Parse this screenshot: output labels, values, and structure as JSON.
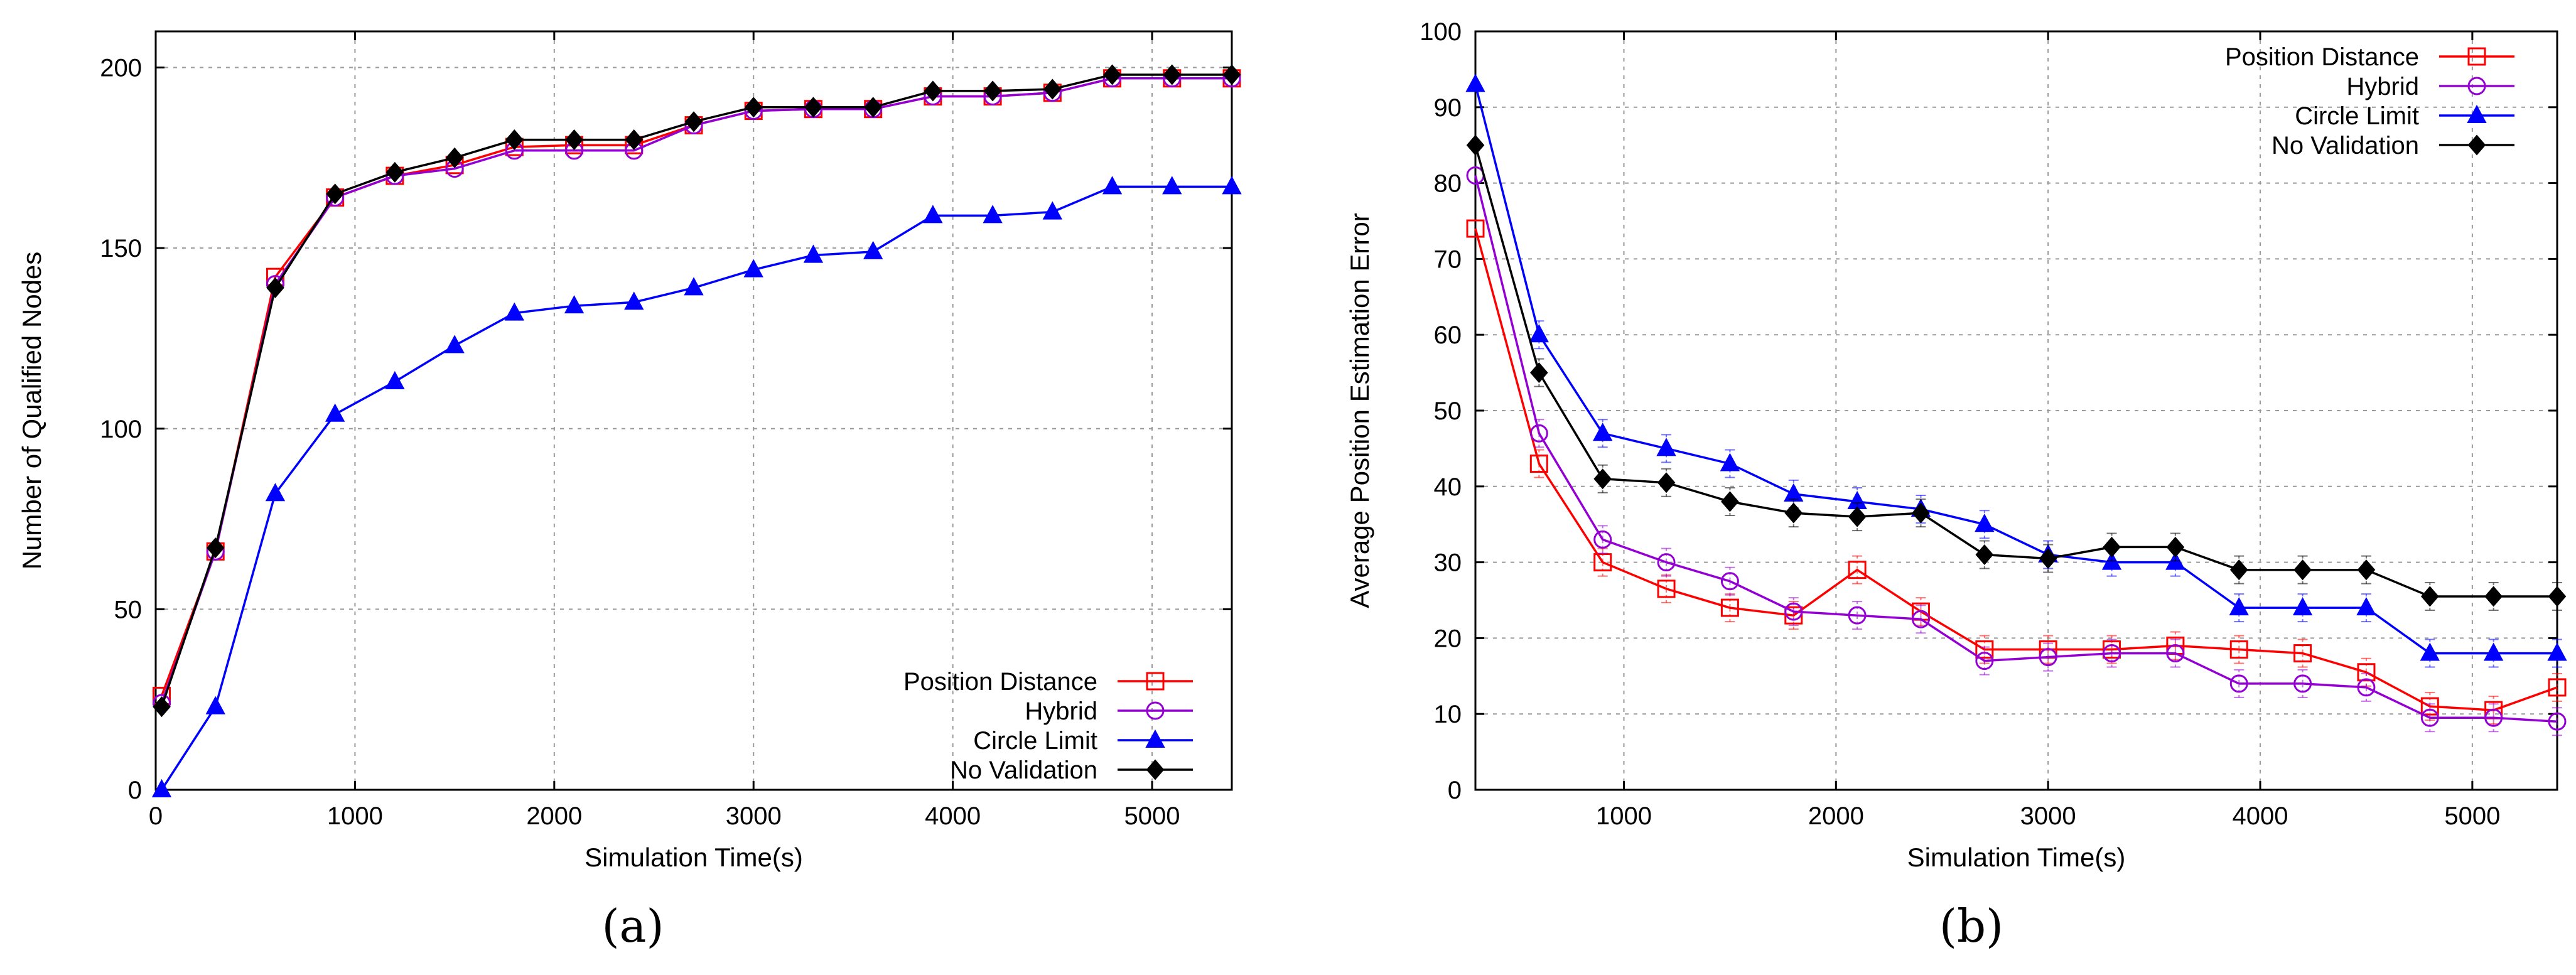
{
  "chart_data": [
    {
      "type": "line",
      "panel_label": "(a)",
      "xlabel": "Simulation Time(s)",
      "ylabel": "Number of Qualified Nodes",
      "xlim": [
        0,
        5400
      ],
      "ylim": [
        0,
        210
      ],
      "xticks": [
        0,
        1000,
        2000,
        3000,
        4000,
        5000
      ],
      "yticks": [
        0,
        50,
        100,
        150,
        200
      ],
      "grid": true,
      "legend_position": "bottom-right",
      "series": [
        {
          "name": "Position Distance",
          "color": "#ff0000",
          "marker": "square",
          "x": [
            30,
            300,
            600,
            900,
            1200,
            1500,
            1800,
            2100,
            2400,
            2700,
            3000,
            3300,
            3600,
            3900,
            4200,
            4500,
            4800,
            5100,
            5400
          ],
          "y": [
            26,
            66,
            142,
            164,
            170,
            173,
            178,
            178.5,
            178.5,
            184,
            188,
            188.5,
            188.5,
            192,
            192,
            193,
            197,
            197,
            197
          ]
        },
        {
          "name": "Hybrid",
          "color": "#9400d3",
          "marker": "circle",
          "x": [
            30,
            300,
            600,
            900,
            1200,
            1500,
            1800,
            2100,
            2400,
            2700,
            3000,
            3300,
            3600,
            3900,
            4200,
            4500,
            4800,
            5100,
            5400
          ],
          "y": [
            24,
            66,
            140,
            164,
            170,
            172,
            177,
            177,
            177,
            184,
            188,
            188.5,
            188.5,
            192,
            192,
            193,
            197,
            197,
            197
          ]
        },
        {
          "name": "Circle Limit",
          "color": "#0000ff",
          "marker": "triangle",
          "x": [
            30,
            300,
            600,
            900,
            1200,
            1500,
            1800,
            2100,
            2400,
            2700,
            3000,
            3300,
            3600,
            3900,
            4200,
            4500,
            4800,
            5100,
            5400
          ],
          "y": [
            0,
            23,
            82,
            104,
            113,
            123,
            132,
            134,
            135,
            139,
            144,
            148,
            149,
            159,
            159,
            160,
            167,
            167,
            167
          ]
        },
        {
          "name": "No Validation",
          "color": "#000000",
          "marker": "diamond",
          "x": [
            30,
            300,
            600,
            900,
            1200,
            1500,
            1800,
            2100,
            2400,
            2700,
            3000,
            3300,
            3600,
            3900,
            4200,
            4500,
            4800,
            5100,
            5400
          ],
          "y": [
            23,
            67,
            139,
            165,
            171,
            175,
            180,
            180,
            180,
            185,
            189,
            189,
            189,
            193.5,
            193.5,
            194,
            198,
            198,
            198
          ]
        }
      ]
    },
    {
      "type": "line",
      "panel_label": "(b)",
      "xlabel": "Simulation Time(s)",
      "ylabel": "Average Position Estimation Error",
      "xlim": [
        300,
        5400
      ],
      "ylim": [
        0,
        100
      ],
      "xticks": [
        1000,
        2000,
        3000,
        4000,
        5000
      ],
      "yticks": [
        0,
        10,
        20,
        30,
        40,
        50,
        60,
        70,
        80,
        90,
        100
      ],
      "grid": true,
      "error_bars": true,
      "legend_position": "top-right",
      "series": [
        {
          "name": "Position Distance",
          "color": "#ff0000",
          "marker": "square",
          "x": [
            300,
            600,
            900,
            1200,
            1500,
            1800,
            2100,
            2400,
            2700,
            3000,
            3300,
            3600,
            3900,
            4200,
            4500,
            4800,
            5100,
            5400
          ],
          "y": [
            74,
            43,
            30,
            26.5,
            24,
            23,
            29,
            23.5,
            18.5,
            18.5,
            18.5,
            19,
            18.5,
            18,
            15.5,
            11,
            10.5,
            13.5
          ]
        },
        {
          "name": "Hybrid",
          "color": "#9400d3",
          "marker": "circle",
          "x": [
            300,
            600,
            900,
            1200,
            1500,
            1800,
            2100,
            2400,
            2700,
            3000,
            3300,
            3600,
            3900,
            4200,
            4500,
            4800,
            5100,
            5400
          ],
          "y": [
            81,
            47,
            33,
            30,
            27.5,
            23.5,
            23,
            22.5,
            17,
            17.5,
            18,
            18,
            14,
            14,
            13.5,
            9.5,
            9.5,
            9
          ]
        },
        {
          "name": "Circle Limit",
          "color": "#0000ff",
          "marker": "triangle",
          "x": [
            300,
            600,
            900,
            1200,
            1500,
            1800,
            2100,
            2400,
            2700,
            3000,
            3300,
            3600,
            3900,
            4200,
            4500,
            4800,
            5100,
            5400
          ],
          "y": [
            93,
            60,
            47,
            45,
            43,
            39,
            38,
            37,
            35,
            31,
            30,
            30,
            24,
            24,
            24,
            18,
            18,
            18
          ]
        },
        {
          "name": "No Validation",
          "color": "#000000",
          "marker": "diamond",
          "x": [
            300,
            600,
            900,
            1200,
            1500,
            1800,
            2100,
            2400,
            2700,
            3000,
            3300,
            3600,
            3900,
            4200,
            4500,
            4800,
            5100,
            5400
          ],
          "y": [
            85,
            55,
            41,
            40.5,
            38,
            36.5,
            36,
            36.5,
            31,
            30.5,
            32,
            32,
            29,
            29,
            29,
            25.5,
            25.5,
            25.5
          ]
        }
      ]
    }
  ]
}
